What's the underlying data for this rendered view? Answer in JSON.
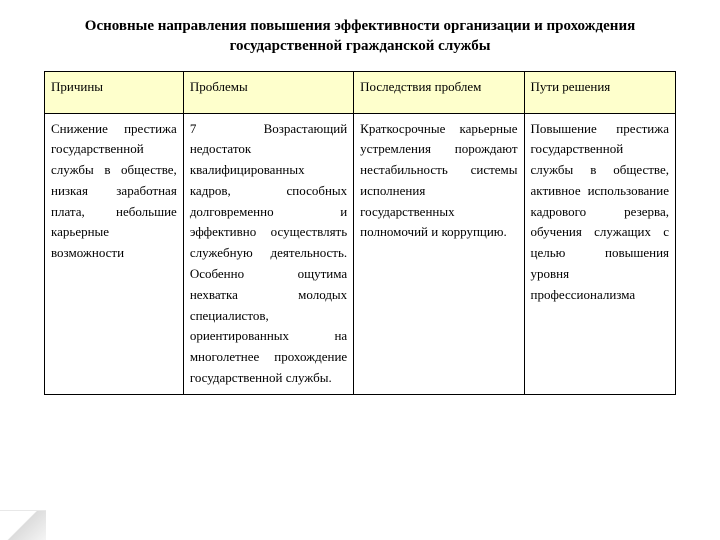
{
  "title": "Основные направления повышения эффективности организации и прохождения государственной гражданской службы",
  "table": {
    "type": "table",
    "header_bg": "#feffcc",
    "border_color": "#000000",
    "columns": [
      "Причины",
      "Проблемы",
      "Последствия проблем",
      "Пути решения"
    ],
    "rows": [
      [
        "Снижение престижа государственной службы в обществе, низкая заработная плата, небольшие карьерные возможности",
        "7 Возрастающий недостаток квалифицированных кадров, способных долговременно и эффективно осуществлять служебную деятельность. Особенно ощутима нехватка молодых специалистов, ориентированных на многолетнее прохождение государственной службы.",
        "Краткосрочные карьерные устремления порождают нестабильность системы исполнения государственных полномочий и коррупцию.",
        "Повышение престижа государственной службы в обществе, активное использование кадрового резерва, обучения служащих с целью повышения уровня профессионализма"
      ]
    ],
    "font_family": "Times New Roman",
    "title_fontsize": 15,
    "cell_fontsize": 13,
    "background_color": "#ffffff"
  }
}
